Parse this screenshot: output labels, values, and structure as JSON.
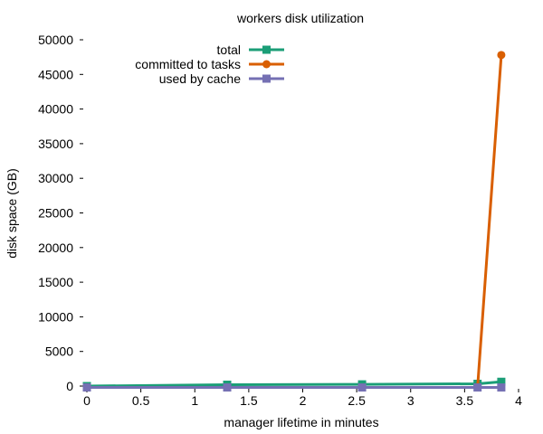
{
  "chart_data": {
    "type": "line",
    "title": "workers disk utilization",
    "xlabel": "manager lifetime in minutes",
    "ylabel": "disk space (GB)",
    "xlim": [
      0,
      4
    ],
    "ylim": [
      0,
      50000
    ],
    "xticks": [
      0,
      0.5,
      1,
      1.5,
      2,
      2.5,
      3,
      3.5,
      4
    ],
    "xtick_labels": [
      "0",
      "0.5",
      "1",
      "1.5",
      "2",
      "2.5",
      "3",
      "3.5",
      "4"
    ],
    "yticks": [
      0,
      5000,
      10000,
      15000,
      20000,
      25000,
      30000,
      35000,
      40000,
      45000,
      50000
    ],
    "ytick_labels": [
      "0",
      "5000",
      "10000",
      "15000",
      "20000",
      "25000",
      "30000",
      "35000",
      "40000",
      "45000",
      "50000"
    ],
    "legend_position": "top",
    "grid": false,
    "series": [
      {
        "name": "total",
        "color": "#1b9e77",
        "marker": "square",
        "points": [
          [
            0,
            0
          ],
          [
            1.3,
            200
          ],
          [
            2.55,
            250
          ],
          [
            3.62,
            330
          ],
          [
            3.84,
            620
          ]
        ]
      },
      {
        "name": "committed to tasks",
        "color": "#d95f02",
        "marker": "circle",
        "points": [
          [
            0,
            -200
          ],
          [
            1.3,
            -200
          ],
          [
            2.55,
            -200
          ],
          [
            3.62,
            -200
          ],
          [
            3.84,
            47800
          ]
        ]
      },
      {
        "name": "used by cache",
        "color": "#7570b3",
        "marker": "square",
        "points": [
          [
            0,
            -200
          ],
          [
            1.3,
            -200
          ],
          [
            2.55,
            -200
          ],
          [
            3.62,
            -200
          ],
          [
            3.84,
            -200
          ]
        ]
      }
    ]
  }
}
